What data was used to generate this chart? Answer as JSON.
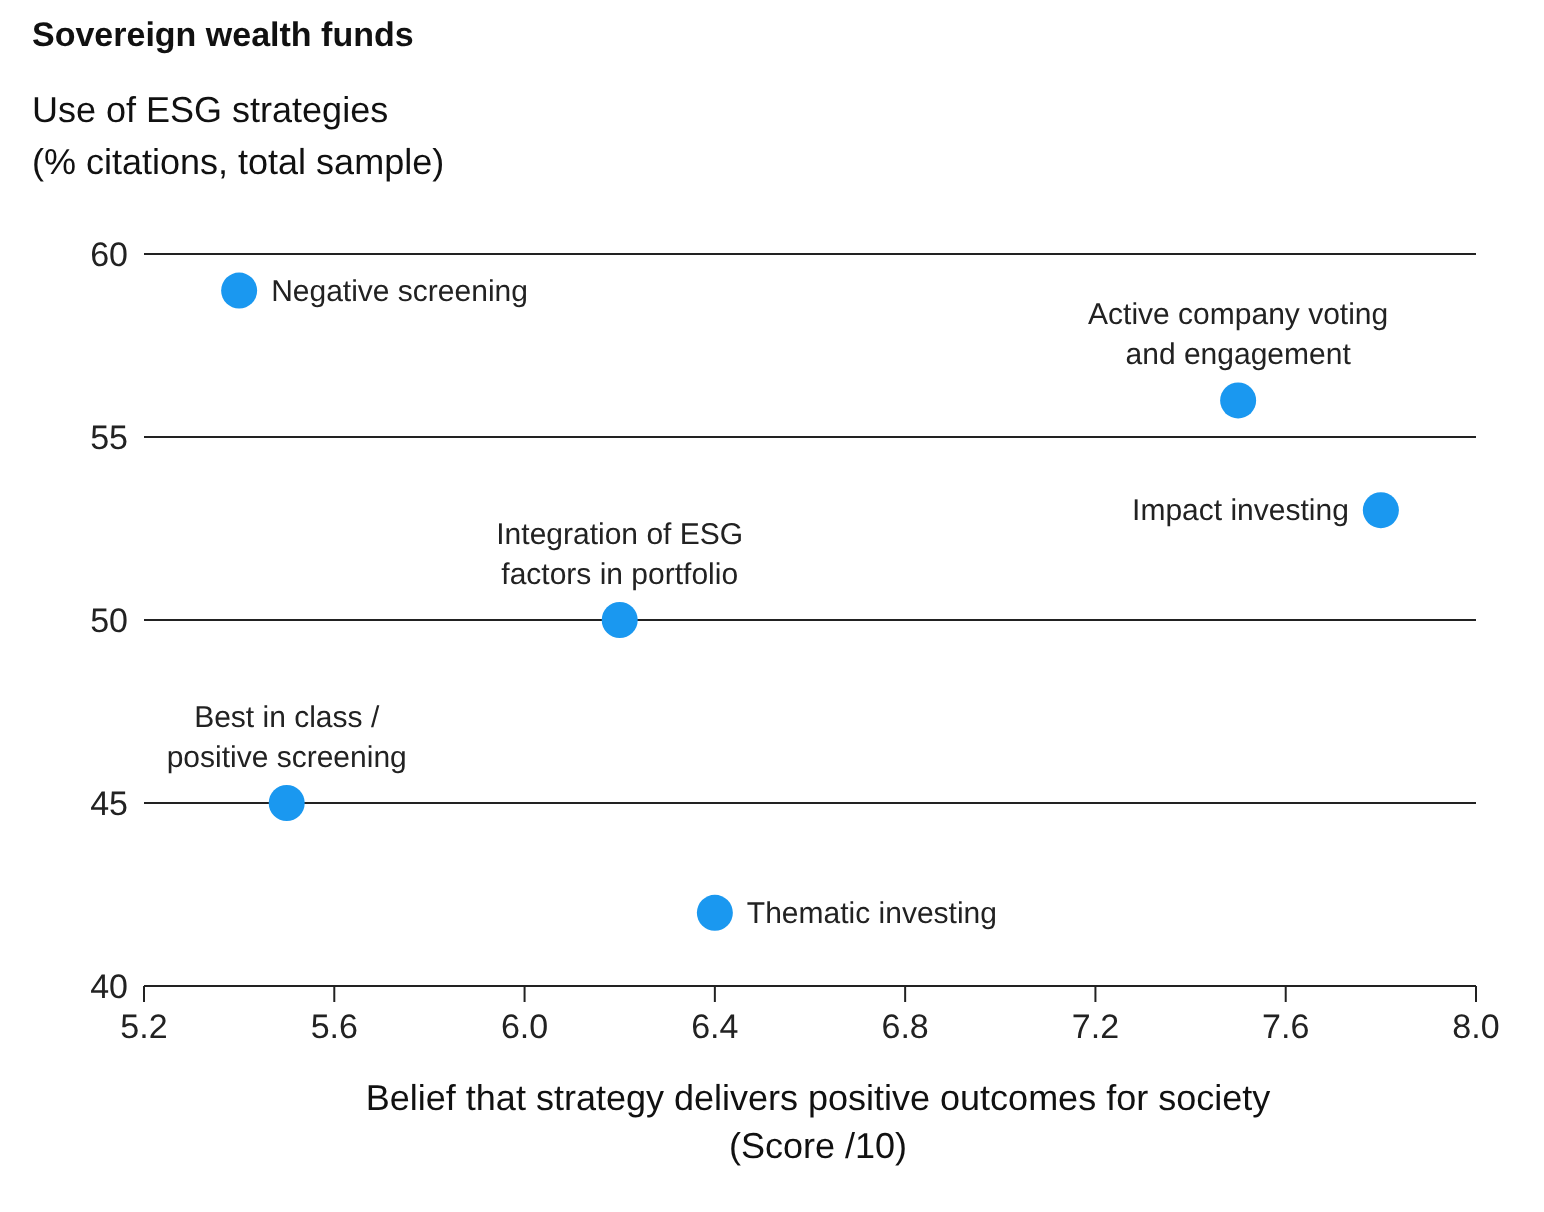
{
  "chart_data": {
    "type": "scatter",
    "title": "Sovereign wealth funds",
    "ylabel": "Use of ESG strategies\n(% citations, total sample)",
    "xlabel": "Belief that strategy delivers positive outcomes for society\n(Score /10)",
    "x": [
      5.4,
      7.5,
      7.8,
      6.2,
      5.5,
      6.4
    ],
    "series": [
      {
        "color": "#1a98f0",
        "values": [
          59,
          56,
          53,
          50,
          45,
          42
        ]
      }
    ],
    "annotations": [
      {
        "text": "Negative screening",
        "x": 5.4,
        "y": 59
      },
      {
        "text": "Active company voting\nand engagement",
        "x": 7.5,
        "y": 56
      },
      {
        "text": "Impact investing",
        "x": 7.8,
        "y": 53
      },
      {
        "text": "Integration of ESG\nfactors in portfolio",
        "x": 6.2,
        "y": 50
      },
      {
        "text": "Best in class /\npositive screening",
        "x": 5.5,
        "y": 45
      },
      {
        "text": "Thematic investing",
        "x": 6.4,
        "y": 42
      }
    ],
    "xlim": [
      5.2,
      8.0
    ],
    "xticks": [
      {
        "value": 5.2,
        "label": "5.2"
      },
      {
        "value": 5.6,
        "label": "5.6"
      },
      {
        "value": 6.0,
        "label": "6.0"
      },
      {
        "value": 6.4,
        "label": "6.4"
      },
      {
        "value": 6.8,
        "label": "6.8"
      },
      {
        "value": 7.2,
        "label": "7.2"
      },
      {
        "value": 7.6,
        "label": "7.6"
      },
      {
        "value": 8.0,
        "label": "8.0"
      }
    ],
    "ylim": [
      40,
      60
    ],
    "yticks": [
      40,
      45,
      50,
      55,
      60
    ],
    "grid": "y",
    "marker": "circle",
    "legend": false
  }
}
